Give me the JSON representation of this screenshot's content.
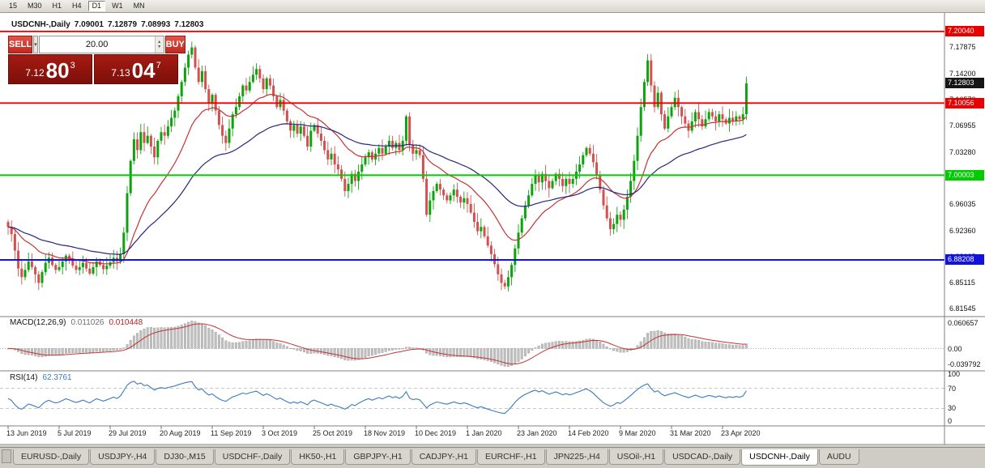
{
  "toolbar": {
    "timeframes": [
      {
        "label": "15",
        "active": false
      },
      {
        "label": "M30",
        "active": false
      },
      {
        "label": "H1",
        "active": false
      },
      {
        "label": "H4",
        "active": false
      },
      {
        "label": "D1",
        "active": true
      },
      {
        "label": "W1",
        "active": false
      },
      {
        "label": "MN",
        "active": false
      }
    ]
  },
  "chart": {
    "title_symbol": "USDCNH-,Daily",
    "ohlc": {
      "open": "7.09001",
      "high": "7.12879",
      "low": "7.08993",
      "close": "7.12803"
    },
    "current_price_badge": "7.12803",
    "trade_panel": {
      "sell_label": "SELL",
      "buy_label": "BUY",
      "volume": "20.00",
      "sell_price_main": "7.12",
      "sell_price_pips": "80",
      "sell_price_sup": "3",
      "buy_price_main": "7.13",
      "buy_price_pips": "04",
      "buy_price_sup": "7"
    }
  },
  "chart_data": {
    "type": "candlestick",
    "symbol": "USDCNH",
    "period": "Daily",
    "visible_bars": 218,
    "y_range": {
      "top": 7.2261,
      "bottom": 6.8042
    },
    "closes": [
      6.928,
      6.918,
      6.895,
      6.87,
      6.858,
      6.868,
      6.88,
      6.872,
      6.862,
      6.85,
      6.865,
      6.878,
      6.885,
      6.875,
      6.868,
      6.872,
      6.88,
      6.888,
      6.882,
      6.874,
      6.868,
      6.872,
      6.878,
      6.87,
      6.863,
      6.872,
      6.88,
      6.875,
      6.869,
      6.874,
      6.879,
      6.885,
      6.88,
      6.89,
      6.92,
      6.975,
      7.02,
      7.05,
      7.035,
      7.06,
      7.045,
      7.055,
      7.04,
      7.025,
      7.048,
      7.06,
      7.055,
      7.068,
      7.08,
      7.09,
      7.11,
      7.13,
      7.15,
      7.168,
      7.178,
      7.15,
      7.13,
      7.145,
      7.12,
      7.1,
      7.112,
      7.09,
      7.07,
      7.055,
      7.045,
      7.065,
      7.085,
      7.095,
      7.11,
      7.125,
      7.118,
      7.13,
      7.14,
      7.148,
      7.135,
      7.12,
      7.135,
      7.125,
      7.11,
      7.095,
      7.105,
      7.09,
      7.075,
      7.062,
      7.07,
      7.058,
      7.068,
      7.055,
      7.04,
      7.062,
      7.07,
      7.058,
      7.048,
      7.035,
      7.022,
      7.03,
      7.015,
      7.008,
      6.995,
      6.978,
      6.988,
      7.002,
      6.992,
      7.005,
      7.015,
      7.025,
      7.032,
      7.022,
      7.03,
      7.038,
      7.03,
      7.04,
      7.048,
      7.038,
      7.045,
      7.035,
      7.048,
      7.082,
      7.042,
      7.03,
      7.035,
      7.028,
      6.995,
      6.945,
      6.965,
      6.978,
      6.988,
      6.98,
      6.972,
      6.965,
      6.972,
      6.98,
      6.97,
      6.962,
      6.968,
      6.96,
      6.948,
      6.935,
      6.922,
      6.928,
      6.915,
      6.902,
      6.89,
      6.876,
      6.862,
      6.85,
      6.845,
      6.858,
      6.875,
      6.898,
      6.92,
      6.94,
      6.958,
      6.972,
      6.988,
      7.0,
      6.99,
      7.002,
      6.992,
      6.982,
      6.992,
      7.002,
      6.995,
      6.985,
      6.995,
      6.988,
      6.995,
      7.005,
      7.015,
      7.028,
      7.038,
      7.03,
      7.018,
      7.0,
      6.98,
      6.958,
      6.94,
      6.925,
      6.932,
      6.945,
      6.938,
      6.952,
      6.97,
      6.992,
      7.02,
      7.055,
      7.095,
      7.13,
      7.16,
      7.125,
      7.095,
      7.115,
      7.085,
      7.065,
      7.082,
      7.095,
      7.108,
      7.095,
      7.082,
      7.072,
      7.062,
      7.075,
      7.088,
      7.078,
      7.068,
      7.078,
      7.088,
      7.082,
      7.075,
      7.085,
      7.078,
      7.072,
      7.08,
      7.075,
      7.082,
      7.078,
      7.085,
      7.128
    ],
    "first_open": 6.935,
    "current_price": 7.12803,
    "candle_colors": {
      "bull": "#0CA30C",
      "bear": "#D35050"
    },
    "horizontal_levels": [
      {
        "price": 7.2004,
        "label": "7.20040",
        "color": "#E80000",
        "width": 1.8
      },
      {
        "price": 7.10056,
        "label": "7.10056",
        "color": "#E80000",
        "width": 1.8
      },
      {
        "price": 7.00003,
        "label": "7.00003",
        "color": "#00CC00",
        "width": 2
      },
      {
        "price": 6.88208,
        "label": "6.88208",
        "color": "#1212DE",
        "width": 2
      }
    ],
    "moving_averages": [
      {
        "type": "ema",
        "period": 20,
        "color": "#C83232"
      },
      {
        "type": "ema",
        "period": 50,
        "color": "#26267E"
      }
    ],
    "y_axis_labels": [
      "7.17875",
      "7.14200",
      "7.10570",
      "7.06955",
      "7.03280",
      "6.99605",
      "6.96035",
      "6.92360",
      "6.88685",
      "6.85115",
      "6.81545"
    ],
    "x_axis_labels": [
      {
        "i": 0,
        "label": "13 Jun 2019"
      },
      {
        "i": 15,
        "label": "5 Jul 2019"
      },
      {
        "i": 30,
        "label": "29 Jul 2019"
      },
      {
        "i": 45,
        "label": "20 Aug 2019"
      },
      {
        "i": 60,
        "label": "11 Sep 2019"
      },
      {
        "i": 75,
        "label": "3 Oct 2019"
      },
      {
        "i": 90,
        "label": "25 Oct 2019"
      },
      {
        "i": 105,
        "label": "18 Nov 2019"
      },
      {
        "i": 120,
        "label": "10 Dec 2019"
      },
      {
        "i": 135,
        "label": "1 Jan 2020"
      },
      {
        "i": 150,
        "label": "23 Jan 2020"
      },
      {
        "i": 165,
        "label": "14 Feb 2020"
      },
      {
        "i": 180,
        "label": "9 Mar 2020"
      },
      {
        "i": 195,
        "label": "31 Mar 2020"
      },
      {
        "i": 210,
        "label": "23 Apr 2020"
      }
    ],
    "indicators": {
      "macd": {
        "name": "MACD(12,26,9)",
        "fast": 12,
        "slow": 26,
        "signal": 9,
        "value_main": "0.011026",
        "value_signal": "0.010448",
        "axis_max": "0.060657",
        "axis_zero": "0.00",
        "axis_min": "-0.039792",
        "histogram_color": "#BFBFBF",
        "signal_color": "#C83232"
      },
      "rsi": {
        "name": "RSI(14)",
        "period": 14,
        "value": "62.3761",
        "axis_labels": [
          "100",
          "70",
          "30",
          "0"
        ],
        "guide_levels": [
          70,
          30
        ],
        "line_color": "#3A7ABF"
      }
    }
  },
  "tabs": {
    "items": [
      {
        "label": "EURUSD-,Daily",
        "active": false
      },
      {
        "label": "USDJPY-,H4",
        "active": false
      },
      {
        "label": "DJ30-,M15",
        "active": false
      },
      {
        "label": "USDCHF-,Daily",
        "active": false
      },
      {
        "label": "HK50-,H1",
        "active": false
      },
      {
        "label": "GBPJPY-,H1",
        "active": false
      },
      {
        "label": "CADJPY-,H1",
        "active": false
      },
      {
        "label": "EURCHF-,H1",
        "active": false
      },
      {
        "label": "JPN225-,H4",
        "active": false
      },
      {
        "label": "USOil-,H1",
        "active": false
      },
      {
        "label": "USDCAD-,Daily",
        "active": false
      },
      {
        "label": "USDCNH-,Daily",
        "active": true
      },
      {
        "label": "AUDU",
        "active": false
      }
    ]
  }
}
